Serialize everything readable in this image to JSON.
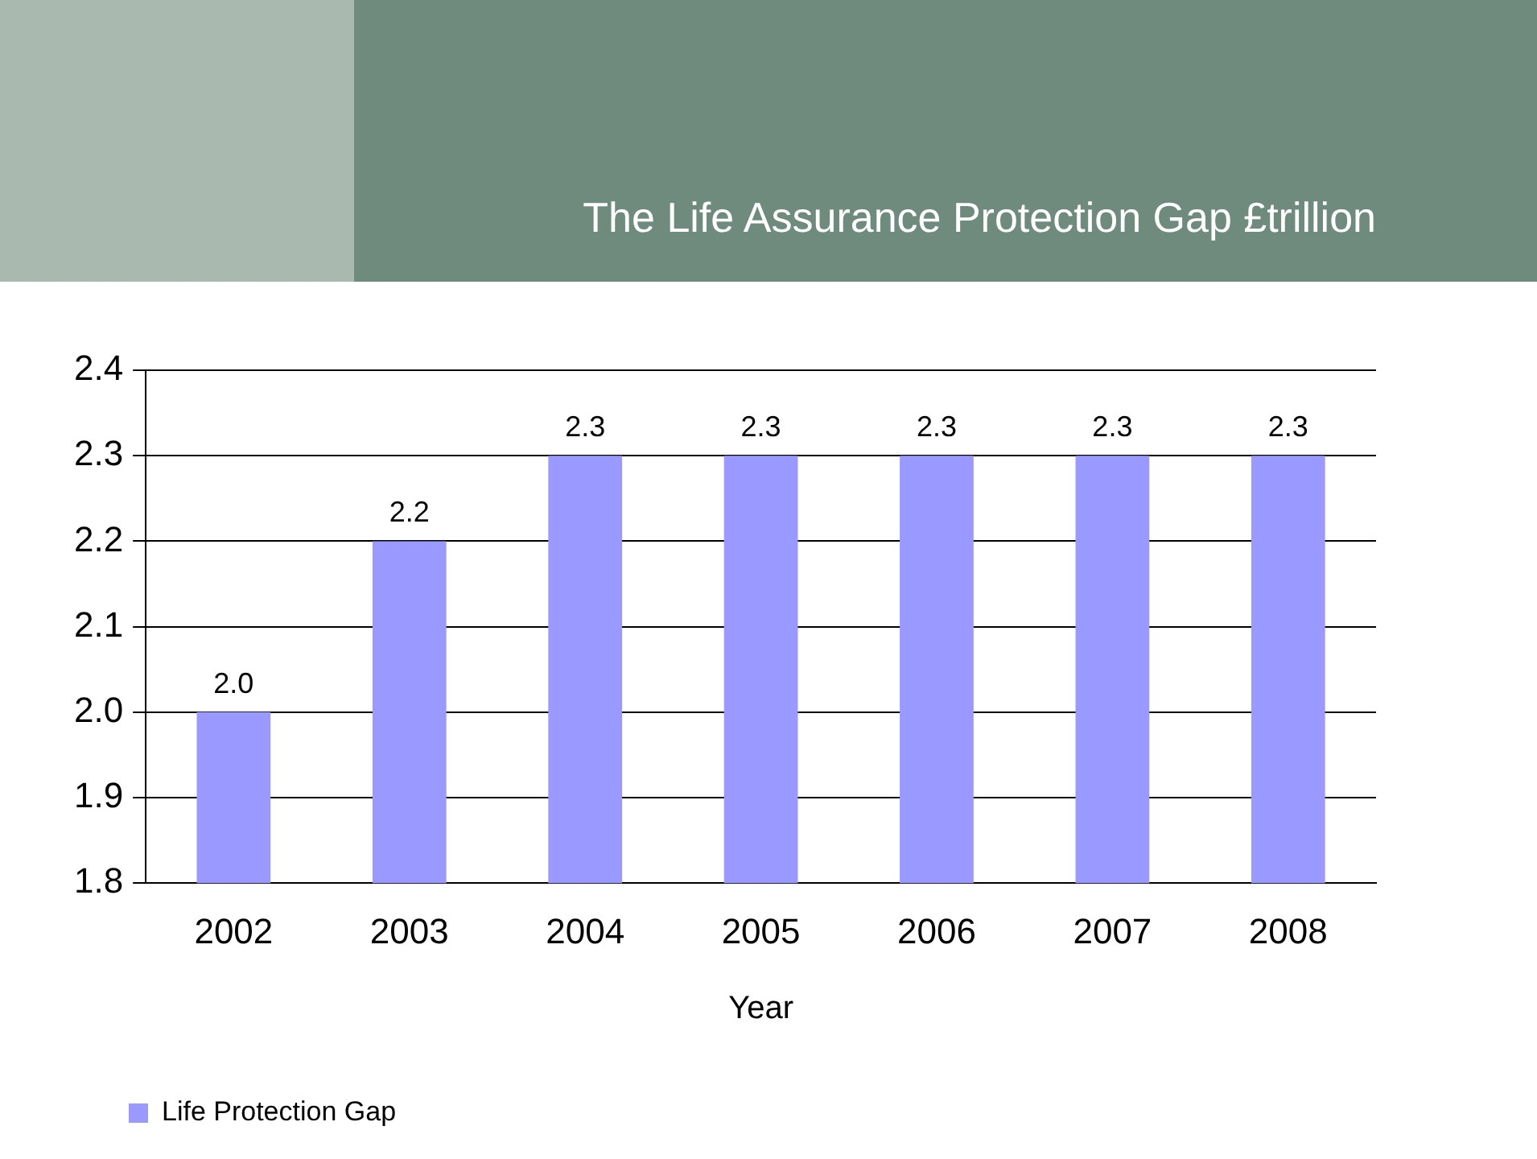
{
  "chart_data": {
    "type": "bar",
    "title": "The Life Assurance Protection Gap £trillion",
    "xlabel": "Year",
    "categories": [
      "2002",
      "2003",
      "2004",
      "2005",
      "2006",
      "2007",
      "2008"
    ],
    "series": [
      {
        "name": "Life Protection Gap",
        "color": "#9999ff",
        "values": [
          2.0,
          2.2,
          2.3,
          2.3,
          2.3,
          2.3,
          2.3
        ],
        "value_labels": [
          "2.0",
          "2.2",
          "2.3",
          "2.3",
          "2.3",
          "2.3",
          "2.3"
        ]
      }
    ],
    "ylim": [
      1.8,
      2.4
    ],
    "yticks": [
      1.8,
      1.9,
      {
        "value": 2,
        "label": "2.0"
      },
      2.1,
      2.2,
      2.3,
      2.4
    ],
    "grid": "y",
    "legend": "bottom left"
  }
}
